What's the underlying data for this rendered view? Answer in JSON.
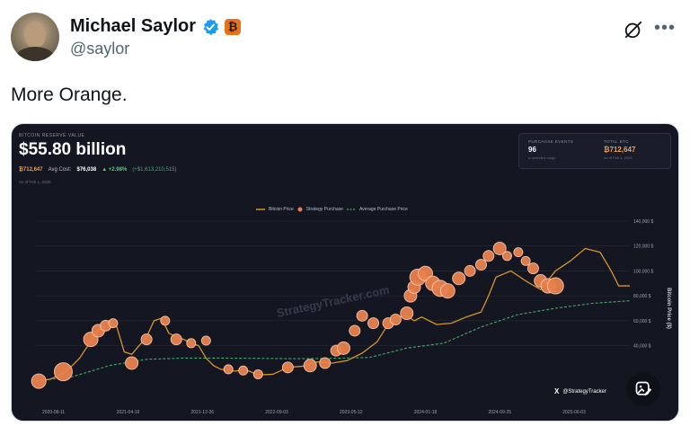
{
  "tweet": {
    "author_name": "Michael Saylor",
    "author_handle": "@saylor",
    "badge_label": "₿",
    "text": "More Orange."
  },
  "card": {
    "reserve_label": "BITCOIN RESERVE VALUE",
    "reserve_value": "$55.80 billion",
    "btc_holding": "₿712,647",
    "avg_cost_label": "Avg Cost:",
    "avg_cost_value": "$76,038",
    "change_pct": "▲ +2.98%",
    "change_abs": "(+$1,613,210,515)",
    "as_of": "As of Feb 1, 2026",
    "purchase_events_label": "PURCHASE EVENTS",
    "purchase_events_value": "96",
    "purchase_events_sub": "in selected range",
    "total_btc_label": "TOTAL BTC",
    "total_btc_value": "₿712,647",
    "total_btc_sub": "As of Feb 1, 2026",
    "attribution": "@StrategyTracker",
    "attribution_x": "X",
    "watermark": "StrategyTracker.com"
  },
  "colors": {
    "accent_orange": "#e8814d",
    "price_line": "#d4952b",
    "avg_line": "#3fae6c",
    "card_bg": "#141622",
    "verified_blue": "#1d9bf0"
  },
  "icons": [
    "verified-badge-icon",
    "bitcoin-badge-icon",
    "grok-icon",
    "more-icon",
    "x-logo-icon",
    "edit-image-icon"
  ],
  "chart_data": {
    "type": "line",
    "legend": [
      "Bitcoin Price",
      "Strategy Purchase",
      "Average Purchase Price"
    ],
    "xlabel": "",
    "ylabel": "Bitcoin Price ($)",
    "ylim": [
      0,
      140000
    ],
    "y_ticks": [
      40000,
      60000,
      80000,
      100000,
      120000,
      140000
    ],
    "y_tick_labels": [
      "40,000 $",
      "60,000 $",
      "80,000 $",
      "100,000 $",
      "120,000 $",
      "140,000 $"
    ],
    "x_tick_labels": [
      "2020-08-11",
      "2021-04-19",
      "2021-12-26",
      "2022-09-03",
      "2023-05-12",
      "2024-01-18",
      "2024-09-25",
      "2025-06-03"
    ],
    "x_ticks": [
      0,
      1,
      2,
      3,
      4,
      5,
      6,
      7
    ],
    "x_range": [
      0,
      8.0
    ],
    "grid": true,
    "legend_position": "top-center",
    "series": [
      {
        "name": "Bitcoin Price",
        "x": [
          0.0,
          0.2,
          0.4,
          0.6,
          0.8,
          0.9,
          1.0,
          1.1,
          1.2,
          1.3,
          1.4,
          1.5,
          1.6,
          1.7,
          1.8,
          1.9,
          2.0,
          2.1,
          2.2,
          2.3,
          2.4,
          2.5,
          2.6,
          2.7,
          2.8,
          2.9,
          3.0,
          3.2,
          3.4,
          3.6,
          3.8,
          4.0,
          4.2,
          4.4,
          4.6,
          4.8,
          5.0,
          5.1,
          5.2,
          5.4,
          5.6,
          5.8,
          6.0,
          6.1,
          6.2,
          6.4,
          6.6,
          6.8,
          7.0,
          7.2,
          7.4,
          7.6,
          7.75,
          7.85,
          8.0
        ],
        "y": [
          11500,
          13000,
          18000,
          30000,
          48000,
          57000,
          60000,
          55000,
          35000,
          33000,
          40000,
          47000,
          60000,
          62000,
          50000,
          47000,
          45000,
          42000,
          40000,
          30000,
          24000,
          21000,
          20000,
          19500,
          21000,
          19000,
          16500,
          17000,
          22500,
          23500,
          27000,
          26000,
          28000,
          34000,
          43000,
          62000,
          64000,
          60000,
          63000,
          57000,
          58000,
          63000,
          67000,
          80000,
          95000,
          100000,
          92000,
          85000,
          100000,
          108000,
          118000,
          115000,
          100000,
          88000,
          88000
        ]
      },
      {
        "name": "Average Purchase Price",
        "x": [
          0.0,
          0.5,
          1.0,
          1.5,
          2.0,
          2.5,
          3.0,
          3.5,
          4.0,
          4.5,
          5.0,
          5.5,
          6.0,
          6.5,
          7.0,
          7.5,
          8.0
        ],
        "y": [
          11500,
          15000,
          24000,
          29000,
          30000,
          30000,
          29800,
          29500,
          29800,
          30500,
          38000,
          42000,
          55000,
          65000,
          70000,
          74000,
          76038
        ]
      }
    ],
    "purchases": [
      {
        "x": 0.05,
        "y": 11500,
        "r": 8
      },
      {
        "x": 0.38,
        "y": 19000,
        "r": 10
      },
      {
        "x": 0.75,
        "y": 45000,
        "r": 8
      },
      {
        "x": 0.85,
        "y": 52000,
        "r": 7
      },
      {
        "x": 0.95,
        "y": 56000,
        "r": 6
      },
      {
        "x": 1.05,
        "y": 58000,
        "r": 5
      },
      {
        "x": 1.3,
        "y": 26000,
        "r": 7
      },
      {
        "x": 1.5,
        "y": 45000,
        "r": 6
      },
      {
        "x": 1.75,
        "y": 60000,
        "r": 5
      },
      {
        "x": 1.9,
        "y": 45000,
        "r": 6
      },
      {
        "x": 2.1,
        "y": 42000,
        "r": 5
      },
      {
        "x": 2.3,
        "y": 44000,
        "r": 5
      },
      {
        "x": 2.6,
        "y": 21000,
        "r": 5
      },
      {
        "x": 2.8,
        "y": 20000,
        "r": 5
      },
      {
        "x": 3.0,
        "y": 17000,
        "r": 5
      },
      {
        "x": 3.4,
        "y": 22500,
        "r": 6
      },
      {
        "x": 3.7,
        "y": 24000,
        "r": 7
      },
      {
        "x": 3.9,
        "y": 26000,
        "r": 6
      },
      {
        "x": 4.05,
        "y": 36000,
        "r": 6
      },
      {
        "x": 4.15,
        "y": 38000,
        "r": 7
      },
      {
        "x": 4.3,
        "y": 52000,
        "r": 6
      },
      {
        "x": 4.4,
        "y": 64000,
        "r": 6
      },
      {
        "x": 4.55,
        "y": 58000,
        "r": 6
      },
      {
        "x": 4.75,
        "y": 58000,
        "r": 6
      },
      {
        "x": 4.85,
        "y": 61000,
        "r": 6
      },
      {
        "x": 5.0,
        "y": 66000,
        "r": 7
      },
      {
        "x": 5.05,
        "y": 80000,
        "r": 7
      },
      {
        "x": 5.1,
        "y": 87000,
        "r": 7
      },
      {
        "x": 5.15,
        "y": 95000,
        "r": 9
      },
      {
        "x": 5.25,
        "y": 98000,
        "r": 8
      },
      {
        "x": 5.35,
        "y": 90000,
        "r": 8
      },
      {
        "x": 5.45,
        "y": 86000,
        "r": 9
      },
      {
        "x": 5.55,
        "y": 84000,
        "r": 8
      },
      {
        "x": 5.7,
        "y": 94000,
        "r": 7
      },
      {
        "x": 5.85,
        "y": 100000,
        "r": 6
      },
      {
        "x": 6.0,
        "y": 105000,
        "r": 6
      },
      {
        "x": 6.1,
        "y": 112000,
        "r": 6
      },
      {
        "x": 6.25,
        "y": 118000,
        "r": 7
      },
      {
        "x": 6.35,
        "y": 112000,
        "r": 5
      },
      {
        "x": 6.5,
        "y": 115000,
        "r": 5
      },
      {
        "x": 6.6,
        "y": 108000,
        "r": 5
      },
      {
        "x": 6.7,
        "y": 102000,
        "r": 6
      },
      {
        "x": 6.8,
        "y": 92000,
        "r": 7
      },
      {
        "x": 6.9,
        "y": 88000,
        "r": 8
      },
      {
        "x": 7.0,
        "y": 88000,
        "r": 9
      }
    ]
  }
}
